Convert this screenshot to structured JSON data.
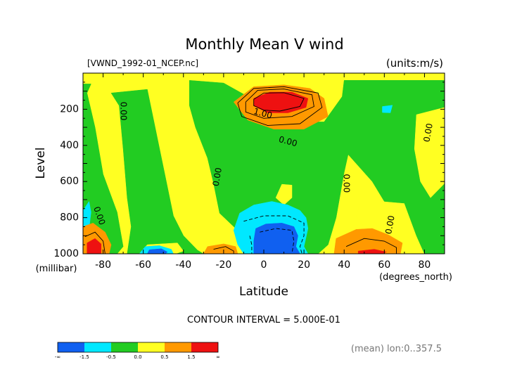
{
  "chart_data": {
    "type": "heatmap",
    "title": "Monthly Mean V wind",
    "dataset_label": "[VWND_1992-01_NCEP.nc]",
    "units_label": "(units:m/s)",
    "xlabel": "Latitude",
    "xunits": "(degrees_north)",
    "ylabel": "Level",
    "yunits": "(millibar)",
    "xlim": [
      -90,
      90
    ],
    "ylim": [
      1000,
      0
    ],
    "x_ticks": [
      -80,
      -60,
      -40,
      -20,
      0,
      20,
      40,
      60,
      80
    ],
    "y_ticks": [
      200,
      400,
      600,
      800,
      1000
    ],
    "grid": false,
    "contour_interval_text": "CONTOUR INTERVAL = 5.000E-01",
    "footnote": "(mean) lon:0..357.5",
    "colorbar": {
      "tick_labels": [
        "-∞",
        "-1.5",
        "-0.5",
        "0.0",
        "0.5",
        "1.5",
        "∞"
      ],
      "colors": [
        "#1060f0",
        "#00e8ff",
        "#22cc22",
        "#ffff22",
        "#ff9900",
        "#ee1111"
      ]
    },
    "contour_labels": [
      {
        "text": "1.00",
        "x": -0.5,
        "y": 225,
        "rotate": 15
      },
      {
        "text": "0.00",
        "x": 12,
        "y": 380,
        "rotate": 15
      },
      {
        "text": "0.00",
        "x": -70,
        "y": 210,
        "rotate": 90
      },
      {
        "text": "0.00",
        "x": -23,
        "y": 575,
        "rotate": -80
      },
      {
        "text": "0.00",
        "x": 41,
        "y": 610,
        "rotate": 90
      },
      {
        "text": "0.00",
        "x": 82,
        "y": 330,
        "rotate": -80
      },
      {
        "text": "0.00",
        "x": 63,
        "y": 840,
        "rotate": -80
      },
      {
        "text": "0.00",
        "x": -82,
        "y": 790,
        "rotate": 70
      }
    ],
    "regions": [
      {
        "level": "0.0 to 0.5",
        "color": "#ffff22",
        "points": [
          [
            -90,
            0
          ],
          [
            90,
            0
          ],
          [
            90,
            1000
          ],
          [
            -90,
            1000
          ]
        ]
      },
      {
        "level": "-0.5 to 0.0",
        "color": "#22cc22",
        "points": [
          [
            -90,
            60
          ],
          [
            -86,
            60
          ],
          [
            -88,
            110
          ],
          [
            -84,
            300
          ],
          [
            -80,
            560
          ],
          [
            -73,
            770
          ],
          [
            -70,
            960
          ],
          [
            -73,
            1000
          ],
          [
            -90,
            1000
          ]
        ]
      },
      {
        "level": "-0.5 to 0.0",
        "color": "#22cc22",
        "points": [
          [
            -76,
            110
          ],
          [
            -58,
            90
          ],
          [
            -55,
            250
          ],
          [
            -50,
            520
          ],
          [
            -45,
            790
          ],
          [
            -40,
            900
          ],
          [
            -33,
            980
          ],
          [
            -30,
            1000
          ],
          [
            -68,
            1000
          ],
          [
            -66,
            850
          ],
          [
            -68,
            690
          ],
          [
            -70,
            420
          ],
          [
            -72,
            180
          ]
        ]
      },
      {
        "level": "-0.5 to 0.0",
        "color": "#22cc22",
        "points": [
          [
            -37,
            40
          ],
          [
            -20,
            55
          ],
          [
            5,
            210
          ],
          [
            18,
            270
          ],
          [
            30,
            270
          ],
          [
            39,
            130
          ],
          [
            40,
            40
          ],
          [
            90,
            40
          ],
          [
            90,
            1000
          ],
          [
            80,
            1000
          ],
          [
            76,
            900
          ],
          [
            70,
            720
          ],
          [
            60,
            710
          ],
          [
            54,
            600
          ],
          [
            42,
            450
          ],
          [
            40,
            550
          ],
          [
            36,
            800
          ],
          [
            32,
            950
          ],
          [
            27,
            1000
          ],
          [
            -1,
            1000
          ],
          [
            -7,
            930
          ],
          [
            -14,
            860
          ],
          [
            -22,
            775
          ],
          [
            -25,
            610
          ],
          [
            -28,
            470
          ],
          [
            -34,
            300
          ],
          [
            -37,
            180
          ]
        ]
      },
      {
        "level": "0.0 to 0.5",
        "color": "#ffff22",
        "points": [
          [
            9,
            615
          ],
          [
            14,
            620
          ],
          [
            14,
            690
          ],
          [
            10,
            730
          ],
          [
            6,
            690
          ]
        ]
      },
      {
        "level": "0.0 to 0.5",
        "color": "#ffff22",
        "points": [
          [
            76,
            230
          ],
          [
            90,
            190
          ],
          [
            90,
            610
          ],
          [
            83,
            690
          ],
          [
            78,
            600
          ],
          [
            75,
            420
          ]
        ]
      },
      {
        "level": "0.0 to 0.5",
        "color": "#ffff22",
        "points": [
          [
            48,
            720
          ],
          [
            58,
            730
          ],
          [
            62,
            880
          ],
          [
            53,
            900
          ],
          [
            46,
            790
          ]
        ]
      },
      {
        "level": "0.0 to 0.5",
        "color": "#ffff22",
        "points": [
          [
            -58,
            950
          ],
          [
            -43,
            940
          ],
          [
            -40,
            985
          ],
          [
            -44,
            1000
          ],
          [
            -62,
            1000
          ]
        ]
      },
      {
        "level": "0.0 to 0.5",
        "color": "#ffff22",
        "points": [
          [
            -27,
            930
          ],
          [
            -15,
            905
          ],
          [
            -9,
            950
          ],
          [
            -8,
            1000
          ],
          [
            -30,
            1000
          ]
        ]
      },
      {
        "level": "-1.5 to -0.5",
        "color": "#00e8ff",
        "points": [
          [
            -12,
            775
          ],
          [
            -5,
            730
          ],
          [
            4,
            710
          ],
          [
            12,
            730
          ],
          [
            18,
            760
          ],
          [
            21,
            800
          ],
          [
            22,
            860
          ],
          [
            21,
            910
          ],
          [
            20,
            960
          ],
          [
            22,
            1000
          ],
          [
            -10,
            1000
          ],
          [
            -13,
            950
          ],
          [
            -15,
            870
          ]
        ]
      },
      {
        "level": "-1.5 to -0.5",
        "color": "#00e8ff",
        "points": [
          [
            -59,
            960
          ],
          [
            -52,
            955
          ],
          [
            -46,
            975
          ],
          [
            -45,
            1000
          ],
          [
            -62,
            1000
          ]
        ]
      },
      {
        "level": "-1.5 to -0.5",
        "color": "#00e8ff",
        "points": [
          [
            59,
            185
          ],
          [
            64,
            178
          ],
          [
            63,
            220
          ],
          [
            59,
            218
          ]
        ]
      },
      {
        "level": "-1.5 to -0.5",
        "color": "#00e8ff",
        "points": [
          [
            -90,
            760
          ],
          [
            -87,
            710
          ],
          [
            -86,
            770
          ],
          [
            -87,
            860
          ],
          [
            -90,
            880
          ]
        ]
      },
      {
        "level": "< -1.5",
        "color": "#1060f0",
        "points": [
          [
            -4,
            860
          ],
          [
            1,
            835
          ],
          [
            9,
            830
          ],
          [
            15,
            850
          ],
          [
            17,
            900
          ],
          [
            16,
            960
          ],
          [
            18,
            1000
          ],
          [
            -5,
            1000
          ],
          [
            -5,
            930
          ]
        ]
      },
      {
        "level": "< -1.5",
        "color": "#1060f0",
        "points": [
          [
            -57,
            978
          ],
          [
            -51,
            972
          ],
          [
            -48,
            990
          ],
          [
            -49,
            1000
          ],
          [
            -58,
            1000
          ]
        ]
      },
      {
        "level": "0.5 to 1.5",
        "color": "#ff9900",
        "points": [
          [
            -15,
            160
          ],
          [
            -5,
            75
          ],
          [
            10,
            65
          ],
          [
            23,
            85
          ],
          [
            30,
            140
          ],
          [
            32,
            240
          ],
          [
            20,
            310
          ],
          [
            5,
            310
          ],
          [
            -8,
            260
          ]
        ]
      },
      {
        "level": "0.5 to 1.5",
        "color": "#ff9900",
        "points": [
          [
            36,
            915
          ],
          [
            46,
            865
          ],
          [
            54,
            860
          ],
          [
            62,
            895
          ],
          [
            69,
            940
          ],
          [
            68,
            1000
          ],
          [
            35,
            1000
          ]
        ]
      },
      {
        "level": "0.5 to 1.5",
        "color": "#ff9900",
        "points": [
          [
            -28,
            960
          ],
          [
            -20,
            945
          ],
          [
            -14,
            960
          ],
          [
            -13,
            1000
          ],
          [
            -30,
            1000
          ]
        ]
      },
      {
        "level": "0.5 to 1.5",
        "color": "#ff9900",
        "points": [
          [
            -90,
            850
          ],
          [
            -85,
            830
          ],
          [
            -79,
            880
          ],
          [
            -76,
            950
          ],
          [
            -77,
            1000
          ],
          [
            -90,
            1000
          ]
        ]
      },
      {
        "level": "> 1.5",
        "color": "#ee1111",
        "points": [
          [
            -5,
            140
          ],
          [
            3,
            105
          ],
          [
            14,
            105
          ],
          [
            22,
            140
          ],
          [
            21,
            190
          ],
          [
            12,
            220
          ],
          [
            2,
            220
          ],
          [
            -5,
            180
          ]
        ]
      },
      {
        "level": "> 1.5",
        "color": "#ee1111",
        "points": [
          [
            47,
            985
          ],
          [
            55,
            975
          ],
          [
            61,
            990
          ],
          [
            59,
            1000
          ],
          [
            47,
            1000
          ]
        ]
      },
      {
        "level": "> 1.5",
        "color": "#ee1111",
        "points": [
          [
            -88,
            940
          ],
          [
            -84,
            915
          ],
          [
            -81,
            945
          ],
          [
            -81,
            1000
          ],
          [
            -88,
            1000
          ]
        ]
      }
    ],
    "contour_lines": [
      {
        "style": "solid",
        "points": [
          [
            -5,
            145
          ],
          [
            0,
            110
          ],
          [
            10,
            108
          ],
          [
            20,
            140
          ],
          [
            18,
            185
          ],
          [
            8,
            210
          ],
          [
            0,
            205
          ],
          [
            -5,
            180
          ],
          [
            -5,
            145
          ]
        ]
      },
      {
        "style": "solid",
        "points": [
          [
            -9,
            160
          ],
          [
            -3,
            95
          ],
          [
            10,
            88
          ],
          [
            24,
            120
          ],
          [
            25,
            185
          ],
          [
            14,
            240
          ],
          [
            0,
            250
          ],
          [
            -9,
            215
          ],
          [
            -9,
            160
          ]
        ]
      },
      {
        "style": "solid",
        "points": [
          [
            -13,
            165
          ],
          [
            -5,
            85
          ],
          [
            10,
            75
          ],
          [
            27,
            110
          ],
          [
            29,
            190
          ],
          [
            18,
            280
          ],
          [
            2,
            290
          ],
          [
            -11,
            240
          ],
          [
            -13,
            165
          ]
        ]
      },
      {
        "style": "dashed",
        "points": [
          [
            -10,
            820
          ],
          [
            0,
            790
          ],
          [
            12,
            790
          ],
          [
            20,
            830
          ],
          [
            20,
            900
          ],
          [
            18,
            960
          ],
          [
            19,
            1000
          ]
        ]
      },
      {
        "style": "dashed",
        "points": [
          [
            -2,
            880
          ],
          [
            6,
            860
          ],
          [
            14,
            870
          ],
          [
            15,
            930
          ],
          [
            14,
            1000
          ]
        ]
      },
      {
        "style": "dashed",
        "points": [
          [
            -7,
            900
          ],
          [
            -6,
            950
          ],
          [
            -6,
            1000
          ]
        ]
      },
      {
        "style": "solid",
        "points": [
          [
            41,
            960
          ],
          [
            50,
            915
          ],
          [
            60,
            930
          ],
          [
            66,
            965
          ],
          [
            66,
            1000
          ]
        ]
      },
      {
        "style": "solid",
        "points": [
          [
            -25,
            975
          ],
          [
            -19,
            960
          ],
          [
            -15,
            985
          ],
          [
            -15,
            1000
          ]
        ]
      },
      {
        "style": "solid",
        "points": [
          [
            -89,
            905
          ],
          [
            -84,
            880
          ],
          [
            -80,
            930
          ],
          [
            -79,
            1000
          ]
        ]
      }
    ]
  }
}
